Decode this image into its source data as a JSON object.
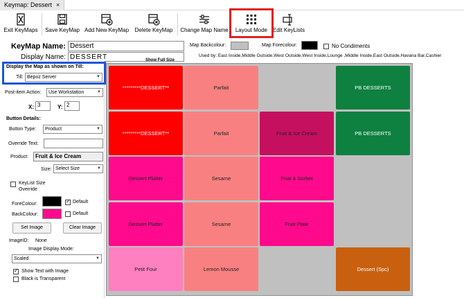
{
  "window": {
    "title": "Keymap: Dessert",
    "close": "×"
  },
  "toolbar": [
    {
      "label": "Exit KeyMaps",
      "icon": "exit-icon"
    },
    {
      "label": "Save KeyMap",
      "icon": "save-icon"
    },
    {
      "label": "Add New KeyMap",
      "icon": "add-keymap-icon"
    },
    {
      "label": "Delete KeyMap",
      "icon": "delete-keymap-icon"
    },
    {
      "label": "Change Map Name",
      "icon": "change-name-icon"
    },
    {
      "label": "Layout Mode",
      "icon": "grid-icon"
    },
    {
      "label": "Edit KeyLists",
      "icon": "edit-keylists-icon"
    }
  ],
  "header": {
    "keymap_name_label": "KeyMap Name:",
    "keymap_name_value": "Dessert",
    "display_name_label": "Display Name:",
    "display_name_value": "DESSERT",
    "show_full_size": "Show Full Size",
    "map_backcolour_label": "Map Backcolour:",
    "map_forecolour_label": "Map Forecolour:",
    "no_condiments_label": "No Condiments",
    "used_by": "Used by: East Inside,Middle Outside,West Outside,West Inside,Lounge ,Middle Inside,East Outside,Havana Bar,Cashier",
    "colors": {
      "map_backcolour": "#c0c0c0",
      "map_forecolour": "#000000"
    }
  },
  "panel": {
    "display_title": "Display the Map as shown on Till:",
    "till_label": "Till:",
    "till_value": "Bepoz Server",
    "post_item_label": "Post-item Action:",
    "post_item_value": "Use Workstation",
    "x_label": "X:",
    "x_value": "3",
    "y_label": "Y:",
    "y_value": "2",
    "button_details_title": "Button Details:",
    "button_type_label": "Button Type:",
    "button_type_value": "Product",
    "override_text_label": "Override Text:",
    "override_text_value": "",
    "product_label": "Product:",
    "product_value": "Fruit & Ice Cream",
    "size_label": "Size:",
    "size_value": "Select Size",
    "keylist_size_label": "KeyList Size Override",
    "forecolour_label": "ForeColour:",
    "backcolour_label": "BackColour:",
    "default_label": "Default",
    "set_image_label": "Set Image",
    "clear_image_label": "Clear Image",
    "image_id_label": "ImageID:",
    "image_id_value": "None",
    "image_display_mode_label": "Image Display Mode:",
    "image_display_mode_value": "Scaled",
    "show_text_label": "Show Text with Image",
    "black_transparent_label": "Black is Transparent",
    "colors": {
      "forecolour": "#000000",
      "backcolour": "#ff0a8c"
    }
  },
  "grid": {
    "background": "#c0c0c0",
    "cells": [
      {
        "label": "*********DESSERT**",
        "bg": "#ff0000",
        "fg": "#ffffff"
      },
      {
        "label": "Parfait",
        "bg": "#f98080",
        "fg": "#222222"
      },
      {
        "label": "",
        "bg": "",
        "fg": ""
      },
      {
        "label": "PB DESSERTS",
        "bg": "#0e8040",
        "fg": "#ffffff"
      },
      {
        "label": "*********DESSERT**",
        "bg": "#ff0000",
        "fg": "#ffffff"
      },
      {
        "label": "Parfait",
        "bg": "#f98080",
        "fg": "#222222"
      },
      {
        "label": "Fruit & Ice Cream",
        "bg": "#c4105e",
        "fg": "#222222"
      },
      {
        "label": "PB DESSERTS",
        "bg": "#0e8040",
        "fg": "#ffffff"
      },
      {
        "label": "Dessert Platter",
        "bg": "#ff0a8c",
        "fg": "#222222"
      },
      {
        "label": "Sesame",
        "bg": "#f98080",
        "fg": "#222222"
      },
      {
        "label": "Fruit & Sorbet",
        "bg": "#ff0a8c",
        "fg": "#222222"
      },
      {
        "label": "",
        "bg": "",
        "fg": ""
      },
      {
        "label": "Dessert Platter",
        "bg": "#ff0a8c",
        "fg": "#222222"
      },
      {
        "label": "Sesame",
        "bg": "#f98080",
        "fg": "#222222"
      },
      {
        "label": "Fruit Plate",
        "bg": "#ff0a8c",
        "fg": "#222222"
      },
      {
        "label": "",
        "bg": "",
        "fg": ""
      },
      {
        "label": "Petit Four",
        "bg": "#ff80c0",
        "fg": "#222222"
      },
      {
        "label": "Lemon Mousse",
        "bg": "#f98080",
        "fg": "#222222"
      },
      {
        "label": "",
        "bg": "",
        "fg": ""
      },
      {
        "label": "Dessert (Spc)",
        "bg": "#c86010",
        "fg": "#ffffff"
      }
    ]
  }
}
